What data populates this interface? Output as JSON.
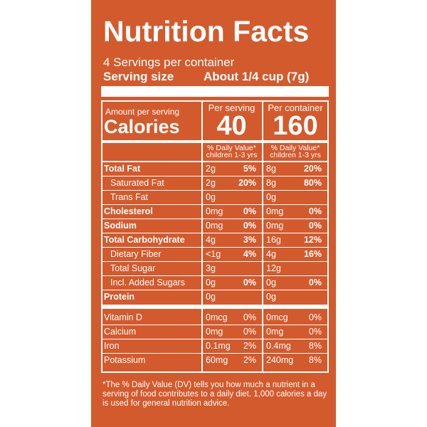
{
  "title": "Nutrition Facts",
  "servings": "4 Servings per container",
  "serving_size": {
    "label": "Serving size",
    "value": "About 1/4 cup (7g)"
  },
  "amount_label": "Amount per serving",
  "calories_label": "Calories",
  "columns": [
    {
      "header": "Per serving",
      "calories": "40",
      "dv_line1": "% Daily Value*",
      "dv_line2": "children 1-3 yrs"
    },
    {
      "header": "Per container",
      "calories": "160",
      "dv_line1": "% Daily Value*",
      "dv_line2": "children 1-3 yrs"
    }
  ],
  "nutrients": [
    {
      "name": "Total Fat",
      "values": [
        "2g",
        "5%",
        "8g",
        "20%"
      ]
    },
    {
      "name": "Saturated Fat",
      "values": [
        "2g",
        "20%",
        "8g",
        "80%"
      ]
    },
    {
      "name": "Trans Fat",
      "values": [
        "0g",
        null,
        "0g",
        null
      ]
    },
    {
      "name": "Cholesterol",
      "values": [
        "0mg",
        "0%",
        "0mg",
        "0%"
      ]
    },
    {
      "name": "Sodium",
      "values": [
        "0mg",
        "0%",
        "0mg",
        "0%"
      ]
    },
    {
      "name": "Total Carbohydrate",
      "values": [
        "4g",
        "3%",
        "16g",
        "12%"
      ]
    },
    {
      "name": "Dietary Fiber",
      "values": [
        "<1g",
        "4%",
        "4g",
        "16%"
      ]
    },
    {
      "name": "Total Sugar",
      "values": [
        "3g",
        null,
        "12g",
        null
      ]
    },
    {
      "name": "Incl. Added Sugars",
      "values": [
        "0g",
        "0%",
        "0g",
        "0%"
      ]
    },
    {
      "name": "Protein",
      "values": [
        "0g",
        null,
        "0g",
        null
      ]
    }
  ],
  "vitamins": [
    {
      "name": "Vitamin D",
      "values": [
        "0mcg",
        "0%",
        "0mcg",
        "0%"
      ]
    },
    {
      "name": "Calcium",
      "values": [
        "0mg",
        "0%",
        "0mg",
        "0%"
      ]
    },
    {
      "name": "Iron",
      "values": [
        "0.1mg",
        "2%",
        "0.4mg",
        "8%"
      ]
    },
    {
      "name": "Potassium",
      "values": [
        "60mg",
        "2%",
        "240mg",
        "8%"
      ]
    }
  ],
  "footnote": "*The % Daily Value (DV) tells you how much a nutrient in a serving of food contributes to a daily diet. 1,000 calories a day is used for general nutrition advice."
}
